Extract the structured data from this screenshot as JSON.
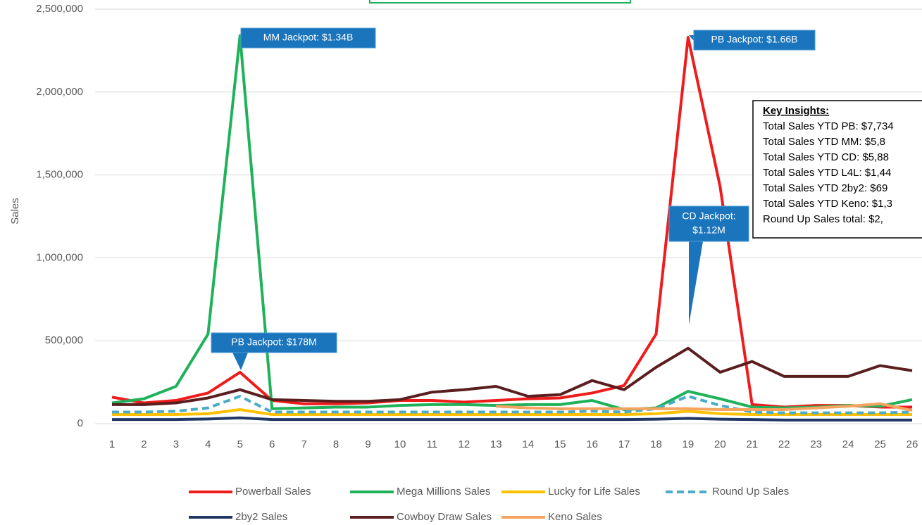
{
  "chart_data": {
    "type": "line",
    "y_label": "Sales",
    "categories": [
      "1",
      "2",
      "3",
      "4",
      "5",
      "6",
      "7",
      "8",
      "9",
      "10",
      "11",
      "12",
      "13",
      "14",
      "15",
      "16",
      "17",
      "18",
      "19",
      "20",
      "21",
      "22",
      "23",
      "24",
      "25",
      "26"
    ],
    "ylim": [
      0,
      2500000
    ],
    "yticks": [
      {
        "value": 0,
        "label": "0"
      },
      {
        "value": 500000,
        "label": "500,000"
      },
      {
        "value": 1000000,
        "label": "1,000,000"
      },
      {
        "value": 1500000,
        "label": "1,500,000"
      },
      {
        "value": 2000000,
        "label": "2,000,000"
      },
      {
        "value": 2500000,
        "label": "2,500,000"
      }
    ],
    "grid": true,
    "legend": "bottom",
    "series": [
      {
        "name": "Powerball Sales",
        "color": "#ee1c1c",
        "dash": false,
        "values": [
          160000,
          125000,
          140000,
          185000,
          310000,
          140000,
          120000,
          120000,
          125000,
          140000,
          140000,
          130000,
          140000,
          150000,
          155000,
          185000,
          230000,
          540000,
          2330000,
          1430000,
          115000,
          100000,
          110000,
          110000,
          100000,
          100000
        ]
      },
      {
        "name": "Mega Millions Sales",
        "color": "#1fb25a",
        "dash": false,
        "values": [
          125000,
          150000,
          225000,
          540000,
          2340000,
          90000,
          95000,
          100000,
          100000,
          110000,
          115000,
          115000,
          110000,
          115000,
          115000,
          140000,
          85000,
          95000,
          195000,
          150000,
          100000,
          95000,
          100000,
          110000,
          105000,
          145000
        ]
      },
      {
        "name": "Lucky for Life Sales",
        "color": "#ffc000",
        "dash": false,
        "values": [
          55000,
          55000,
          55000,
          60000,
          85000,
          55000,
          55000,
          55000,
          55000,
          55000,
          55000,
          55000,
          55000,
          55000,
          55000,
          55000,
          55000,
          60000,
          75000,
          60000,
          55000,
          55000,
          55000,
          55000,
          55000,
          55000
        ]
      },
      {
        "name": "Round Up Sales",
        "color": "#4bacc6",
        "dash": true,
        "values": [
          70000,
          70000,
          75000,
          95000,
          165000,
          70000,
          70000,
          70000,
          70000,
          70000,
          70000,
          70000,
          70000,
          70000,
          70000,
          75000,
          70000,
          90000,
          165000,
          110000,
          70000,
          65000,
          65000,
          65000,
          65000,
          70000
        ]
      },
      {
        "name": "2by2 Sales",
        "color": "#1f3864",
        "dash": false,
        "values": [
          25000,
          25000,
          25000,
          28000,
          35000,
          25000,
          25000,
          25000,
          25000,
          25000,
          25000,
          25000,
          25000,
          25000,
          25000,
          25000,
          25000,
          27000,
          32000,
          27000,
          25000,
          22000,
          22000,
          22000,
          22000,
          22000
        ]
      },
      {
        "name": "Cowboy Draw Sales",
        "color": "#5a1e1e",
        "dash": false,
        "values": [
          115000,
          115000,
          125000,
          155000,
          205000,
          145000,
          140000,
          135000,
          135000,
          145000,
          190000,
          205000,
          225000,
          165000,
          175000,
          260000,
          205000,
          340000,
          455000,
          310000,
          375000,
          285000,
          285000,
          285000,
          350000,
          320000
        ]
      },
      {
        "name": "Keno Sales",
        "color": "#f4a460",
        "dash": false,
        "values": [
          null,
          null,
          null,
          null,
          null,
          null,
          null,
          null,
          null,
          null,
          null,
          null,
          105000,
          95000,
          90000,
          90000,
          90000,
          90000,
          90000,
          85000,
          85000,
          85000,
          95000,
          105000,
          120000,
          80000
        ]
      }
    ],
    "annotations": [
      {
        "text": [
          "MM Jackpot: $1.34B"
        ]
      },
      {
        "text": [
          "PB Jackpot: $1.66B"
        ]
      },
      {
        "text": [
          "PB Jackpot: $178M"
        ]
      },
      {
        "text": [
          "CD Jackpot:",
          "$1.12M"
        ]
      }
    ],
    "insights": {
      "title": "Key Insights:",
      "lines": [
        "Total Sales YTD PB: $7,734",
        "Total Sales YTD MM: $5,8",
        "Total Sales YTD CD: $5,88",
        "Total Sales YTD L4L: $1,44",
        "Total Sales YTD 2by2: $69",
        "Total Sales YTD Keno: $1,3",
        "Round Up Sales total: $2,"
      ]
    }
  }
}
